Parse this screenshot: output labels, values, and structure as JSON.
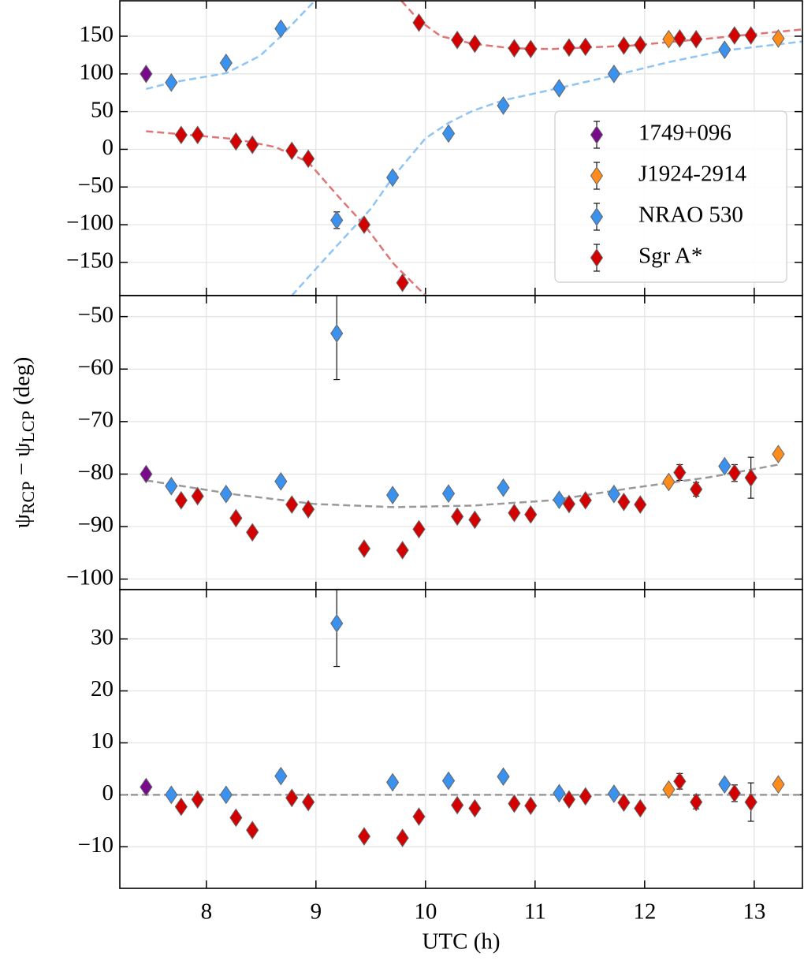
{
  "chart_data": [
    {
      "type": "scatter",
      "xlim": [
        7.21,
        13.44
      ],
      "ylim": [
        -194,
        197
      ],
      "xticks": [
        8,
        9,
        10,
        11,
        12,
        13
      ],
      "show_xtick_labels": false,
      "yticks": [
        {
          "value": -150,
          "label": "−150"
        },
        {
          "value": -100,
          "label": "−100"
        },
        {
          "value": -50,
          "label": "−50"
        },
        0,
        50,
        100,
        150
      ],
      "grid": true,
      "legend": "center right",
      "series": [
        {
          "name": "1749+096",
          "color": "#7a0a8c",
          "x": [
            7.45
          ],
          "values": [
            100
          ],
          "errors": [
            3
          ]
        },
        {
          "name": "J1924-2914",
          "color": "#ff8c1a",
          "x": [
            12.22,
            13.22
          ],
          "values": [
            146,
            147
          ],
          "errors": [
            3,
            3
          ]
        },
        {
          "name": "NRAO 530",
          "color": "#3a92ee",
          "x": [
            7.68,
            8.18,
            8.68,
            9.19,
            9.7,
            10.21,
            10.71,
            11.22,
            11.72,
            12.73
          ],
          "values": [
            88.5,
            114.6,
            160,
            -94,
            -37.5,
            21,
            58,
            81,
            100,
            132
          ],
          "errors": [
            3,
            3,
            3,
            11,
            3,
            3,
            3,
            3,
            3,
            3
          ]
        },
        {
          "name": "Sgr A*",
          "color": "#d40000",
          "x": [
            7.77,
            7.92,
            8.27,
            8.42,
            8.78,
            8.93,
            9.44,
            9.79,
            9.94,
            10.29,
            10.45,
            10.81,
            10.96,
            11.31,
            11.46,
            11.81,
            11.96,
            12.32,
            12.47,
            12.82,
            12.97
          ],
          "values": [
            19,
            19,
            10.4,
            6,
            -2,
            -12.5,
            -100,
            -177,
            168,
            145,
            140,
            134,
            133,
            135,
            136,
            137.5,
            138.5,
            147,
            146,
            151,
            151
          ],
          "errors": [
            3,
            3,
            3,
            3,
            3,
            3,
            3,
            3,
            3,
            3,
            3,
            3,
            3,
            3,
            3,
            3,
            3,
            3,
            3,
            3,
            3
          ]
        }
      ],
      "fits": [
        {
          "color": "#8ec5f5",
          "x": [
            7.45,
            7.68,
            8.18,
            8.49,
            8.68,
            8.85,
            8.99
          ],
          "values": [
            80,
            88.5,
            101,
            124,
            150,
            176,
            197
          ]
        },
        {
          "color": "#8ec5f5",
          "x": [
            8.78,
            9.14,
            9.5,
            9.7,
            10.0,
            10.21,
            10.43,
            10.71,
            11.15,
            11.72,
            12.23,
            12.73,
            13.44
          ],
          "values": [
            -194,
            -136,
            -79,
            -37.5,
            14.6,
            35,
            51,
            65,
            79,
            98,
            116,
            131,
            143
          ]
        },
        {
          "color": "#e07575",
          "x": [
            7.45,
            7.77,
            8.27,
            8.63,
            8.93,
            9.21,
            9.44,
            9.71,
            10.0
          ],
          "values": [
            24,
            20,
            13.5,
            3,
            -17,
            -63.5,
            -100,
            -152,
            -194
          ]
        },
        {
          "color": "#e07575",
          "x": [
            9.78,
            9.94,
            10.14,
            10.43,
            10.79,
            11.15,
            11.87,
            12.59,
            13.44
          ],
          "values": [
            197,
            171,
            150,
            140,
            134,
            133,
            137.5,
            147,
            159
          ]
        }
      ]
    },
    {
      "type": "scatter",
      "xlim": [
        7.21,
        13.44
      ],
      "ylim": [
        -102,
        -46
      ],
      "xticks": [
        8,
        9,
        10,
        11,
        12,
        13
      ],
      "show_xtick_labels": false,
      "yticks": [
        {
          "value": -100,
          "label": "−100"
        },
        {
          "value": -90,
          "label": "−90"
        },
        {
          "value": -80,
          "label": "−80"
        },
        {
          "value": -70,
          "label": "−70"
        },
        {
          "value": -60,
          "label": "−60"
        },
        {
          "value": -50,
          "label": "−50"
        }
      ],
      "grid": true,
      "ylabel": [
        {
          "text": "ψ"
        },
        {
          "text": "RCP",
          "sub": true
        },
        {
          "text": " − ψ"
        },
        {
          "text": "LCP",
          "sub": true
        },
        {
          "text": " (deg)"
        }
      ],
      "series": [
        {
          "name": "1749+096",
          "color": "#7a0a8c",
          "x": [
            7.45
          ],
          "values": [
            -80
          ],
          "errors": [
            0.8
          ]
        },
        {
          "name": "J1924-2914",
          "color": "#ff8c1a",
          "x": [
            12.22,
            13.22
          ],
          "values": [
            -81.5,
            -76.2
          ],
          "errors": [
            0.8,
            0.8
          ]
        },
        {
          "name": "NRAO 530",
          "color": "#3a92ee",
          "x": [
            7.68,
            8.18,
            8.68,
            9.19,
            9.7,
            10.21,
            10.71,
            11.22,
            11.72,
            12.73
          ],
          "values": [
            -82.3,
            -83.8,
            -81.4,
            -53.2,
            -84,
            -83.7,
            -82.6,
            -84.9,
            -83.8,
            -78.5
          ],
          "errors": [
            0.6,
            0.6,
            0.6,
            8.8,
            0.6,
            0.6,
            0.6,
            0.6,
            0.6,
            0.8
          ]
        },
        {
          "name": "Sgr A*",
          "color": "#d40000",
          "x": [
            7.77,
            7.92,
            8.27,
            8.42,
            8.78,
            8.93,
            9.44,
            9.79,
            9.94,
            10.29,
            10.45,
            10.81,
            10.96,
            11.31,
            11.46,
            11.81,
            11.96,
            12.32,
            12.47,
            12.82,
            12.97
          ],
          "values": [
            -85,
            -84.2,
            -88.4,
            -91.1,
            -85.8,
            -86.7,
            -94.2,
            -94.5,
            -90.5,
            -88.1,
            -88.7,
            -87.4,
            -87.7,
            -85.7,
            -85,
            -85.3,
            -85.8,
            -79.7,
            -82.9,
            -79.8,
            -80.7
          ],
          "errors": [
            0.8,
            0.8,
            0.8,
            0.8,
            0.8,
            0.8,
            0.8,
            0.8,
            0.8,
            0.8,
            0.8,
            0.8,
            0.8,
            0.8,
            0.8,
            0.8,
            0.8,
            1.5,
            1.3,
            1.6,
            3.9
          ]
        }
      ],
      "fits": [
        {
          "color": "#999999",
          "x": [
            7.45,
            8.27,
            8.99,
            9.71,
            10.43,
            11.15,
            11.87,
            12.59,
            13.22
          ],
          "values": [
            -81.2,
            -83.9,
            -85.7,
            -86.3,
            -86,
            -85,
            -82.7,
            -80.6,
            -78.2
          ]
        }
      ]
    },
    {
      "type": "scatter",
      "xlim": [
        7.21,
        13.44
      ],
      "ylim": [
        -18,
        39.5
      ],
      "xticks": [
        8,
        9,
        10,
        11,
        12,
        13
      ],
      "show_xtick_labels": true,
      "yticks": [
        {
          "value": -10,
          "label": "−10"
        },
        0,
        10,
        20,
        30
      ],
      "grid": true,
      "xlabel": "UTC (h)",
      "hline": {
        "value": 0,
        "color": "#999999"
      },
      "series": [
        {
          "name": "1749+096",
          "color": "#7a0a8c",
          "x": [
            7.45
          ],
          "values": [
            1.5
          ],
          "errors": [
            0.8
          ]
        },
        {
          "name": "J1924-2914",
          "color": "#ff8c1a",
          "x": [
            12.22,
            13.22
          ],
          "values": [
            1,
            2
          ],
          "errors": [
            0.8,
            0.8
          ]
        },
        {
          "name": "NRAO 530",
          "color": "#3a92ee",
          "x": [
            7.68,
            8.18,
            8.68,
            9.19,
            9.7,
            10.21,
            10.71,
            11.22,
            11.72,
            12.73
          ],
          "values": [
            0,
            0,
            3.6,
            33,
            2.4,
            2.7,
            3.5,
            0.3,
            0.2,
            2
          ],
          "errors": [
            0.6,
            0.6,
            0.6,
            8.3,
            0.6,
            0.6,
            0.6,
            0.6,
            0.6,
            0.8
          ]
        },
        {
          "name": "Sgr A*",
          "color": "#d40000",
          "x": [
            7.77,
            7.92,
            8.27,
            8.42,
            8.78,
            8.93,
            9.44,
            9.79,
            9.94,
            10.29,
            10.45,
            10.81,
            10.96,
            11.31,
            11.46,
            11.81,
            11.96,
            12.32,
            12.47,
            12.82,
            12.97
          ],
          "values": [
            -2.3,
            -0.9,
            -4.4,
            -6.8,
            -0.6,
            -1.4,
            -8,
            -8.3,
            -4.2,
            -2,
            -2.6,
            -1.7,
            -2.1,
            -0.9,
            -0.3,
            -1.5,
            -2.6,
            2.6,
            -1.4,
            0.3,
            -1.4
          ],
          "errors": [
            0.8,
            0.8,
            0.8,
            0.8,
            0.8,
            0.8,
            0.8,
            0.8,
            0.8,
            0.8,
            0.8,
            0.8,
            0.8,
            0.8,
            0.8,
            0.8,
            0.8,
            1.5,
            1.3,
            1.6,
            3.7
          ]
        }
      ]
    }
  ]
}
